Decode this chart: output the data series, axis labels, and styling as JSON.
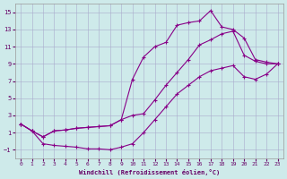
{
  "xlabel": "Windchill (Refroidissement éolien,°C)",
  "background_color": "#ceeaea",
  "grid_color": "#aaaacc",
  "line_color": "#880088",
  "xlim": [
    -0.5,
    23.5
  ],
  "ylim": [
    -2,
    16
  ],
  "xticks": [
    0,
    1,
    2,
    3,
    4,
    5,
    6,
    7,
    8,
    9,
    10,
    11,
    12,
    13,
    14,
    15,
    16,
    17,
    18,
    19,
    20,
    21,
    22,
    23
  ],
  "yticks": [
    -1,
    1,
    3,
    5,
    7,
    9,
    11,
    13,
    15
  ],
  "line1_x": [
    0,
    1,
    2,
    3,
    4,
    5,
    6,
    7,
    8,
    9,
    10,
    11,
    12,
    13,
    14,
    15,
    16,
    17,
    18,
    19,
    20,
    21,
    22,
    23
  ],
  "line1_y": [
    2.0,
    1.2,
    0.5,
    1.2,
    1.3,
    1.5,
    1.6,
    1.7,
    1.8,
    2.5,
    7.2,
    9.8,
    11.0,
    11.5,
    13.5,
    13.8,
    14.0,
    15.2,
    13.3,
    13.0,
    12.0,
    9.5,
    9.2,
    9.0
  ],
  "line2_x": [
    0,
    1,
    2,
    3,
    4,
    5,
    6,
    7,
    8,
    9,
    10,
    11,
    12,
    13,
    14,
    15,
    16,
    17,
    18,
    19,
    20,
    21,
    22,
    23
  ],
  "line2_y": [
    2.0,
    1.2,
    0.5,
    1.2,
    1.3,
    1.5,
    1.6,
    1.7,
    1.8,
    2.5,
    3.0,
    3.2,
    4.8,
    6.5,
    8.0,
    9.5,
    11.2,
    11.8,
    12.5,
    12.8,
    10.0,
    9.3,
    9.0,
    9.0
  ],
  "line3_x": [
    0,
    1,
    2,
    3,
    4,
    5,
    6,
    7,
    8,
    9,
    10,
    11,
    12,
    13,
    14,
    15,
    16,
    17,
    18,
    19,
    20,
    21,
    22,
    23
  ],
  "line3_y": [
    2.0,
    1.2,
    -0.3,
    -0.5,
    -0.6,
    -0.7,
    -0.9,
    -0.9,
    -1.0,
    -0.7,
    -0.3,
    1.0,
    2.5,
    4.0,
    5.5,
    6.5,
    7.5,
    8.2,
    8.5,
    8.8,
    7.5,
    7.2,
    7.8,
    9.0
  ]
}
